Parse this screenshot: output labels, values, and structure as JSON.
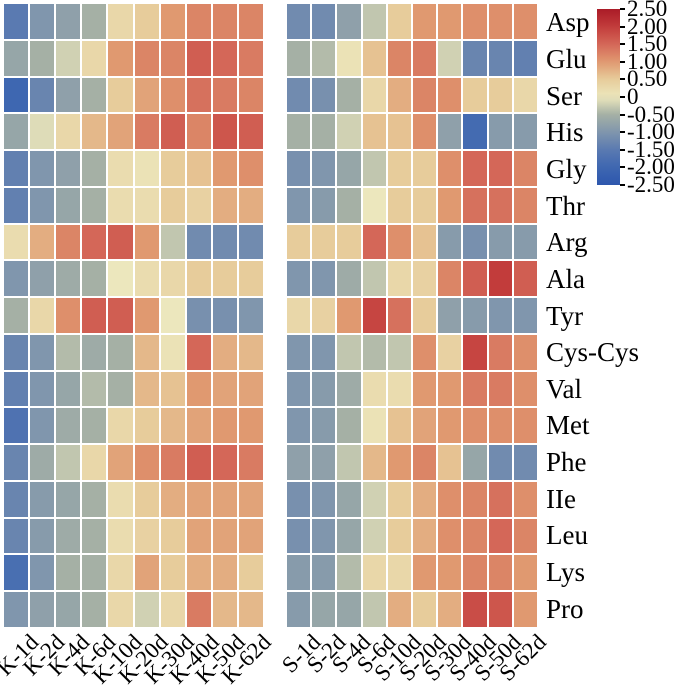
{
  "chart_data": {
    "type": "heatmap",
    "title": "",
    "rows": [
      "Asp",
      "Glu",
      "Ser",
      "His",
      "Gly",
      "Thr",
      "Arg",
      "Ala",
      "Tyr",
      "Cys-Cys",
      "Val",
      "Met",
      "Phe",
      "IIe",
      "Leu",
      "Lys",
      "Pro"
    ],
    "panels": [
      {
        "name": "K",
        "columns": [
          "K-1d",
          "K-2d",
          "K-4d",
          "K-6d",
          "K-10d",
          "K-20d",
          "K-30d",
          "K-40d",
          "K-50d",
          "K-62d"
        ],
        "values": [
          [
            -1.5,
            -1.0,
            -0.8,
            -0.5,
            0.3,
            0.5,
            1.0,
            1.2,
            1.2,
            1.2
          ],
          [
            -0.7,
            -0.5,
            -0.2,
            0.3,
            1.0,
            1.2,
            1.2,
            1.6,
            1.5,
            1.3
          ],
          [
            -2.0,
            -1.3,
            -0.8,
            -0.5,
            0.5,
            0.9,
            1.1,
            1.4,
            1.3,
            1.2
          ],
          [
            -0.7,
            -0.1,
            0.3,
            0.7,
            0.9,
            1.3,
            1.6,
            1.2,
            1.7,
            1.6
          ],
          [
            -1.4,
            -1.0,
            -0.8,
            -0.5,
            0.2,
            0.1,
            0.5,
            0.6,
            1.0,
            1.1
          ],
          [
            -1.4,
            -1.0,
            -0.7,
            -0.5,
            0.2,
            0.2,
            0.5,
            0.4,
            0.8,
            0.8
          ],
          [
            0.2,
            0.8,
            1.2,
            1.5,
            1.6,
            1.0,
            -0.3,
            -1.2,
            -1.2,
            -1.2
          ],
          [
            -1.0,
            -0.8,
            -0.6,
            -0.5,
            0.0,
            0.2,
            0.3,
            0.5,
            0.5,
            0.5
          ],
          [
            -0.5,
            0.3,
            1.1,
            1.6,
            1.6,
            1.0,
            0.0,
            -1.1,
            -1.1,
            -1.0
          ],
          [
            -1.3,
            -1.0,
            -0.4,
            -0.6,
            -0.5,
            0.7,
            0.1,
            1.5,
            0.8,
            0.7
          ],
          [
            -1.4,
            -1.0,
            -0.7,
            -0.4,
            -0.5,
            0.7,
            0.6,
            1.0,
            0.9,
            0.9
          ],
          [
            -1.7,
            -1.0,
            -0.6,
            -0.5,
            0.3,
            0.5,
            0.7,
            0.9,
            1.0,
            1.0
          ],
          [
            -1.3,
            -0.6,
            -0.3,
            0.3,
            0.9,
            1.1,
            1.3,
            1.6,
            1.5,
            1.3
          ],
          [
            -1.3,
            -0.9,
            -0.7,
            -0.5,
            0.2,
            0.5,
            0.8,
            0.9,
            0.9,
            0.9
          ],
          [
            -1.3,
            -0.9,
            -0.6,
            -0.5,
            0.2,
            0.4,
            0.5,
            0.9,
            0.9,
            0.9
          ],
          [
            -1.8,
            -1.0,
            -0.5,
            -0.5,
            0.3,
            0.9,
            0.5,
            0.8,
            0.8,
            0.5
          ],
          [
            -1.0,
            -0.8,
            -0.7,
            -0.5,
            0.3,
            -0.2,
            0.3,
            1.3,
            0.7,
            0.7
          ]
        ]
      },
      {
        "name": "S",
        "columns": [
          "S-1d",
          "S-2d",
          "S-4d",
          "S-6d",
          "S-10d",
          "S-20d",
          "S-30d",
          "S-40d",
          "S-50d",
          "S-62d"
        ],
        "values": [
          [
            -1.2,
            -1.2,
            -0.8,
            -0.3,
            0.5,
            1.0,
            1.0,
            1.1,
            1.1,
            1.1
          ],
          [
            -0.5,
            -0.4,
            0.1,
            0.6,
            1.2,
            1.3,
            -0.2,
            -1.3,
            -1.3,
            -1.4
          ],
          [
            -1.2,
            -1.1,
            -0.5,
            0.3,
            0.8,
            1.2,
            1.1,
            0.5,
            0.5,
            0.3
          ],
          [
            -0.5,
            -0.5,
            -0.2,
            0.6,
            0.6,
            1.1,
            -0.8,
            -1.9,
            -0.9,
            -0.9
          ],
          [
            -1.1,
            -1.0,
            -0.7,
            -0.3,
            0.5,
            0.5,
            1.1,
            1.5,
            1.5,
            1.2
          ],
          [
            -1.0,
            -0.9,
            -0.5,
            0.0,
            0.5,
            0.5,
            1.0,
            1.4,
            1.4,
            1.2
          ],
          [
            0.5,
            0.5,
            0.5,
            1.5,
            1.1,
            0.6,
            -0.9,
            -1.1,
            -0.9,
            -0.9
          ],
          [
            -1.0,
            -1.0,
            -0.6,
            -0.3,
            0.3,
            0.4,
            1.2,
            1.6,
            2.0,
            1.6
          ],
          [
            0.3,
            0.4,
            1.0,
            1.9,
            1.4,
            0.5,
            -0.8,
            -0.9,
            -1.0,
            -1.0
          ],
          [
            -1.0,
            -1.0,
            -0.3,
            -0.4,
            -0.3,
            1.1,
            0.4,
            1.9,
            1.3,
            1.1
          ],
          [
            -1.0,
            -0.9,
            -0.6,
            0.2,
            0.2,
            1.0,
            1.0,
            1.3,
            1.3,
            1.1
          ],
          [
            -1.0,
            -0.9,
            -0.5,
            0.1,
            0.6,
            0.9,
            1.0,
            1.1,
            1.1,
            1.1
          ],
          [
            -0.8,
            -0.8,
            -0.3,
            0.7,
            1.0,
            1.2,
            0.6,
            -0.7,
            -1.2,
            -1.2
          ],
          [
            -1.1,
            -1.0,
            -0.7,
            -0.2,
            0.5,
            0.8,
            1.1,
            1.2,
            1.4,
            1.1
          ],
          [
            -1.1,
            -1.0,
            -0.7,
            -0.2,
            0.5,
            0.8,
            1.1,
            1.2,
            1.5,
            1.2
          ],
          [
            -0.9,
            -0.9,
            -0.4,
            0.3,
            0.3,
            1.0,
            1.0,
            1.2,
            1.2,
            1.0
          ],
          [
            -0.9,
            -0.7,
            -0.7,
            -0.3,
            0.8,
            0.5,
            0.8,
            1.8,
            1.7,
            1.0
          ]
        ]
      }
    ],
    "colorbar": {
      "min": -2.5,
      "max": 2.5,
      "tick_labels": [
        "2.50",
        "2.00",
        "1.50",
        "1.00",
        "0.50",
        "0",
        "-0.50",
        "-1.00",
        "-1.50",
        "-2.00",
        "-2.50"
      ],
      "position": "right"
    },
    "colormap_stops": [
      [
        -2.5,
        "#2e57ad"
      ],
      [
        -2.0,
        "#3e67b1"
      ],
      [
        -1.5,
        "#5a7ab1"
      ],
      [
        -1.0,
        "#8096ad"
      ],
      [
        -0.5,
        "#a5b0a5"
      ],
      [
        0.0,
        "#ece7bd"
      ],
      [
        0.5,
        "#e7cc9b"
      ],
      [
        1.0,
        "#e09970"
      ],
      [
        1.5,
        "#d46758"
      ],
      [
        2.0,
        "#c23c3b"
      ],
      [
        2.5,
        "#aa1b27"
      ]
    ],
    "layout": {
      "grid_line_color": "#ffffff",
      "background": "#ffffff",
      "x_label_rotation_deg": -45
    }
  }
}
